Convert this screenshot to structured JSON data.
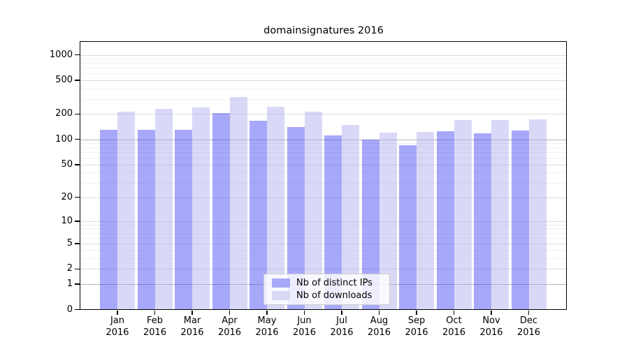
{
  "title": "domainsignatures 2016",
  "chart_data": {
    "type": "bar",
    "title": "domainsignatures 2016",
    "categories": [
      "Jan 2016",
      "Feb 2016",
      "Mar 2016",
      "Apr 2016",
      "May 2016",
      "Jun 2016",
      "Jul 2016",
      "Aug 2016",
      "Sep 2016",
      "Oct 2016",
      "Nov 2016",
      "Dec 2016"
    ],
    "series": [
      {
        "name": "Nb of distinct IPs",
        "key": "distinct-ips",
        "color": "#a8a8f8",
        "fill": "rgba(62,62,244,0.45)",
        "values": [
          131,
          131,
          131,
          207,
          165,
          141,
          111,
          100,
          85,
          124,
          117,
          127
        ]
      },
      {
        "name": "Nb of downloads",
        "key": "downloads",
        "color": "#d9d9f5",
        "fill": "rgba(171,171,237,0.45)",
        "values": [
          215,
          230,
          240,
          316,
          245,
          215,
          147,
          120,
          123,
          170,
          170,
          173
        ]
      }
    ],
    "y_scale": "log1p",
    "y_ticks": [
      0,
      1,
      2,
      5,
      10,
      20,
      50,
      100,
      200,
      500,
      1000
    ],
    "y_minor_ticks": [
      3,
      4,
      6,
      7,
      8,
      9,
      30,
      40,
      60,
      70,
      80,
      90,
      300,
      400,
      600,
      700,
      800,
      900
    ],
    "ylim": [
      0,
      1420
    ],
    "xlabel": "",
    "ylabel": "",
    "grid": {
      "major": true,
      "minor": true
    },
    "legend": {
      "position": "lower-center"
    }
  },
  "colors": {
    "background": "#ffffff",
    "axis": "#000000",
    "grid_major": "#dcdcdc",
    "grid_emphasis": "#b4b4b4",
    "grid_minor": "#f1f1f1",
    "grid_emphasis_values": [
      1,
      100
    ],
    "text": "#000000",
    "legend_border": "#cccccc"
  }
}
